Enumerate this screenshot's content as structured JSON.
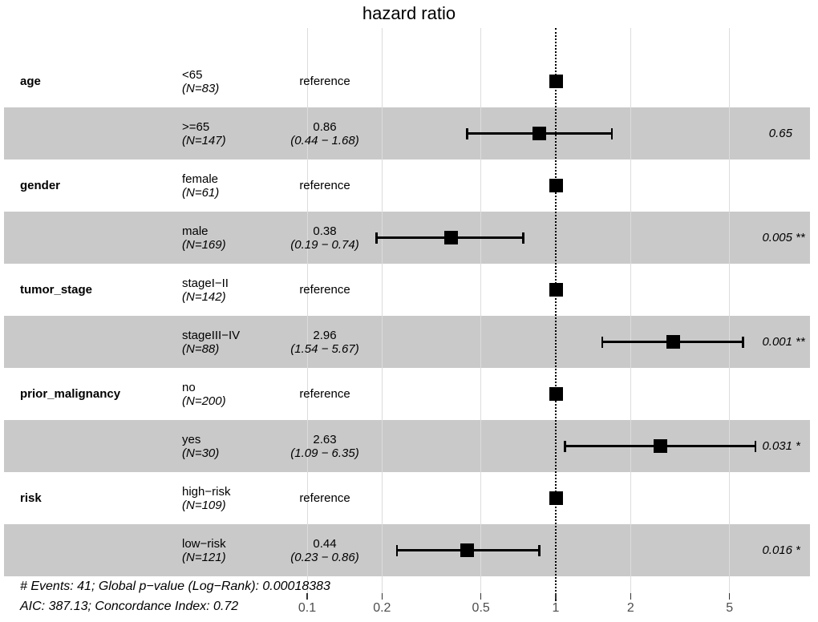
{
  "title": "hazard ratio",
  "footer": {
    "line1": "# Events: 41; Global p−value (Log−Rank): 0.00018383",
    "line2": "AIC: 387.13; Concordance Index: 0.72"
  },
  "colors": {
    "band": "#c9c9c9",
    "gridline": "#dcdcdc",
    "marker": "#000000",
    "tick_mark": "#333333",
    "tick_label": "#4d4d4d",
    "reference_line": "#000000"
  },
  "chart_data": {
    "type": "scatter",
    "subtype": "forest-plot",
    "title": "hazard ratio",
    "x_scale": "log10",
    "x_ticks": [
      {
        "label": "0.1",
        "value": 0.1
      },
      {
        "label": "0.2",
        "value": 0.2
      },
      {
        "label": "0.5",
        "value": 0.5
      },
      {
        "label": "1",
        "value": 1
      },
      {
        "label": "2",
        "value": 2
      },
      {
        "label": "5",
        "value": 5
      }
    ],
    "x_range_approx": [
      0.06,
      9.5
    ],
    "reference_line_x": 1,
    "grid": true,
    "rows": [
      {
        "variable": "age",
        "level": "<65",
        "n_label": "(N=83)",
        "estimate_label": "reference",
        "ci_label": "",
        "hr": 1,
        "ci_low": null,
        "ci_high": null,
        "p_label": "",
        "stars": "",
        "shaded": false,
        "is_reference": true
      },
      {
        "variable": "",
        "level": ">=65",
        "n_label": "(N=147)",
        "estimate_label": "0.86",
        "ci_label": "(0.44 − 1.68)",
        "hr": 0.86,
        "ci_low": 0.44,
        "ci_high": 1.68,
        "p_label": "0.65",
        "stars": "",
        "shaded": true,
        "is_reference": false
      },
      {
        "variable": "gender",
        "level": "female",
        "n_label": "(N=61)",
        "estimate_label": "reference",
        "ci_label": "",
        "hr": 1,
        "ci_low": null,
        "ci_high": null,
        "p_label": "",
        "stars": "",
        "shaded": false,
        "is_reference": true
      },
      {
        "variable": "",
        "level": "male",
        "n_label": "(N=169)",
        "estimate_label": "0.38",
        "ci_label": "(0.19 − 0.74)",
        "hr": 0.38,
        "ci_low": 0.19,
        "ci_high": 0.74,
        "p_label": "0.005",
        "stars": "**",
        "shaded": true,
        "is_reference": false
      },
      {
        "variable": "tumor_stage",
        "level": "stageI−II",
        "n_label": "(N=142)",
        "estimate_label": "reference",
        "ci_label": "",
        "hr": 1,
        "ci_low": null,
        "ci_high": null,
        "p_label": "",
        "stars": "",
        "shaded": false,
        "is_reference": true
      },
      {
        "variable": "",
        "level": "stageIII−IV",
        "n_label": "(N=88)",
        "estimate_label": "2.96",
        "ci_label": "(1.54 − 5.67)",
        "hr": 2.96,
        "ci_low": 1.54,
        "ci_high": 5.67,
        "p_label": "0.001",
        "stars": "**",
        "shaded": true,
        "is_reference": false
      },
      {
        "variable": "prior_malignancy",
        "level": "no",
        "n_label": "(N=200)",
        "estimate_label": "reference",
        "ci_label": "",
        "hr": 1,
        "ci_low": null,
        "ci_high": null,
        "p_label": "",
        "stars": "",
        "shaded": false,
        "is_reference": true
      },
      {
        "variable": "",
        "level": "yes",
        "n_label": "(N=30)",
        "estimate_label": "2.63",
        "ci_label": "(1.09 − 6.35)",
        "hr": 2.63,
        "ci_low": 1.09,
        "ci_high": 6.35,
        "p_label": "0.031",
        "stars": "*",
        "shaded": true,
        "is_reference": false
      },
      {
        "variable": "risk",
        "level": "high−risk",
        "n_label": "(N=109)",
        "estimate_label": "reference",
        "ci_label": "",
        "hr": 1,
        "ci_low": null,
        "ci_high": null,
        "p_label": "",
        "stars": "",
        "shaded": false,
        "is_reference": true
      },
      {
        "variable": "",
        "level": "low−risk",
        "n_label": "(N=121)",
        "estimate_label": "0.44",
        "ci_label": "(0.23 − 0.86)",
        "hr": 0.44,
        "ci_low": 0.23,
        "ci_high": 0.86,
        "p_label": "0.016",
        "stars": "*",
        "shaded": true,
        "is_reference": false
      }
    ],
    "footnote_lines": [
      "# Events: 41; Global p−value (Log−Rank): 0.00018383",
      "AIC: 387.13; Concordance Index: 0.72"
    ],
    "legend": "none"
  }
}
